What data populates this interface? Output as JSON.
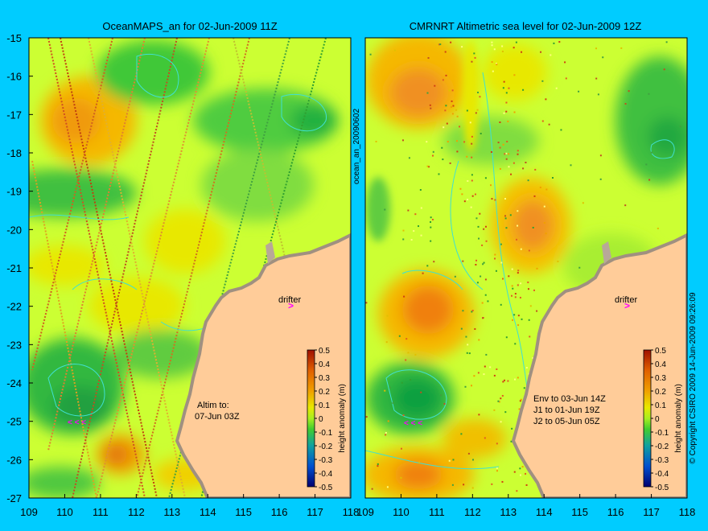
{
  "colors": {
    "background": "#00ccff",
    "land": "#ffcc99",
    "coast_dark": "#a09080",
    "drifter": "#ff00ff",
    "contour": "#40e0d0",
    "field_base": "#ccff33"
  },
  "chart_data": [
    {
      "type": "heatmap",
      "title": "OceanMAPS_an for 02-Jun-2009 11Z",
      "x_ticks": [
        109,
        110,
        111,
        112,
        113,
        114,
        115,
        116,
        117,
        118
      ],
      "y_ticks": [
        -15,
        -16,
        -17,
        -18,
        -19,
        -20,
        -21,
        -22,
        -23,
        -24,
        -25,
        -26,
        -27
      ],
      "xlim": [
        109,
        118
      ],
      "ylim": [
        -27,
        -15
      ],
      "side_label": "ocean_an_20090602",
      "drifter_label": "drifter",
      "note_lines": [
        "Altim to:",
        "07-Jun 03Z"
      ],
      "colorbar": {
        "label": "height anomaly (m)",
        "ticks": [
          "0.5",
          "0.4",
          "0.3",
          "0.2",
          "0.1",
          "0",
          "-0.1",
          "-0.2",
          "-0.3",
          "-0.4",
          "-0.5"
        ]
      }
    },
    {
      "type": "heatmap",
      "title": "CMRNRT Altimetric sea level  for 02-Jun-2009 12Z",
      "x_ticks": [
        109,
        110,
        111,
        112,
        113,
        114,
        115,
        116,
        117,
        118
      ],
      "xlim": [
        109,
        118
      ],
      "ylim": [
        -27,
        -15
      ],
      "side_label": "© Copyright CSIRO 2009   14-Jun-2009 09:26:09",
      "drifter_label": "drifter",
      "note_lines": [
        "Env to 03-Jun 14Z",
        "J1 to 01-Jun 19Z",
        "J2 to 05-Jun 05Z"
      ],
      "colorbar": {
        "label": "height anomaly (m)",
        "ticks": [
          "0.5",
          "0.4",
          "0.3",
          "0.2",
          "0.1",
          "0",
          "-0.1",
          "-0.2",
          "-0.3",
          "-0.4",
          "-0.5"
        ]
      }
    }
  ]
}
